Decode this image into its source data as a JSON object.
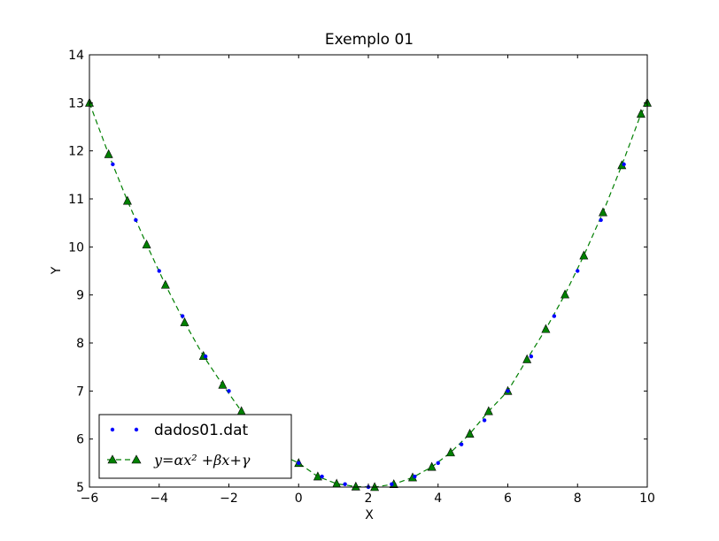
{
  "chart_data": {
    "type": "line",
    "title": "Exemplo 01",
    "xlabel": "X",
    "ylabel": "Y",
    "xlim": [
      -6,
      10
    ],
    "ylim": [
      5,
      14
    ],
    "xticks": [
      -6,
      -4,
      -2,
      0,
      2,
      4,
      6,
      8,
      10
    ],
    "xtick_labels": [
      "−6",
      "−4",
      "−2",
      "0",
      "2",
      "4",
      "6",
      "8",
      "10"
    ],
    "yticks": [
      5,
      6,
      7,
      8,
      9,
      10,
      11,
      12,
      13,
      14
    ],
    "ytick_labels": [
      "5",
      "6",
      "7",
      "8",
      "9",
      "10",
      "11",
      "12",
      "13",
      "14"
    ],
    "grid": false,
    "legend_position": "lower-left",
    "series": [
      {
        "name": "dados01.dat",
        "style": "dots",
        "color": "#0000ff",
        "x": [
          -5.33,
          -4.67,
          -4.0,
          -3.33,
          -2.67,
          -2.0,
          -1.33,
          -0.67,
          0.0,
          0.67,
          1.33,
          2.0,
          2.67,
          3.33,
          4.0,
          4.67,
          5.33,
          6.0,
          6.67,
          7.33,
          8.0,
          8.67,
          9.33
        ],
        "y": [
          11.72,
          10.56,
          9.5,
          8.56,
          7.72,
          7.0,
          6.39,
          5.89,
          5.5,
          5.22,
          5.06,
          5.0,
          5.06,
          5.22,
          5.5,
          5.89,
          6.39,
          7.0,
          7.72,
          8.56,
          9.5,
          10.56,
          11.72
        ]
      },
      {
        "name": "y=αx² +βx+γ",
        "style": "dashed-triangles",
        "color": "#007f00",
        "marker_fill": "#008000",
        "x": [
          -6.0,
          -5.45,
          -4.91,
          -4.36,
          -3.82,
          -3.27,
          -2.73,
          -2.18,
          -1.64,
          -1.09,
          -0.55,
          0.0,
          0.55,
          1.09,
          1.64,
          2.18,
          2.73,
          3.27,
          3.82,
          4.36,
          4.91,
          5.45,
          6.0,
          6.55,
          7.09,
          7.64,
          8.18,
          8.73,
          9.27,
          9.82,
          10.0
        ],
        "y": [
          13.0,
          11.93,
          10.96,
          10.05,
          9.21,
          8.43,
          7.73,
          7.13,
          6.58,
          6.09,
          5.69,
          5.5,
          5.22,
          5.07,
          5.01,
          5.0,
          5.06,
          5.2,
          5.42,
          5.72,
          6.11,
          6.58,
          7.0,
          7.66,
          8.29,
          9.01,
          9.82,
          10.72,
          11.7,
          12.77,
          13.0
        ]
      }
    ]
  }
}
